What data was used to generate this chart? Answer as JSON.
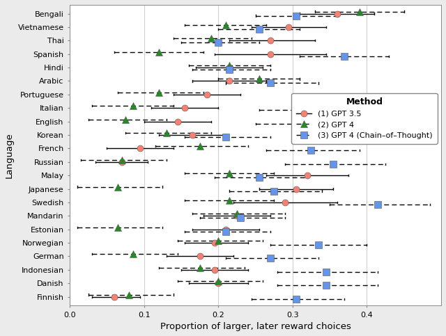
{
  "languages": [
    "Bengali",
    "Vietnamese",
    "Thai",
    "Spanish",
    "Hindi",
    "Arabic",
    "Portuguese",
    "Italian",
    "English",
    "Korean",
    "French",
    "Russian",
    "Malay",
    "Japanese",
    "Swedish",
    "Mandarin",
    "Estonian",
    "Norwegian",
    "German",
    "Indonesian",
    "Danish",
    "Finnish"
  ],
  "gpt35": {
    "means": [
      0.36,
      0.295,
      0.27,
      0.27,
      0.215,
      0.215,
      0.185,
      0.155,
      0.145,
      0.165,
      0.095,
      0.07,
      0.32,
      0.305,
      0.29,
      0.225,
      0.21,
      0.195,
      0.175,
      0.195,
      0.2,
      0.06
    ],
    "lo": [
      0.31,
      0.245,
      0.215,
      0.195,
      0.17,
      0.165,
      0.14,
      0.11,
      0.1,
      0.12,
      0.05,
      0.035,
      0.265,
      0.255,
      0.22,
      0.18,
      0.165,
      0.155,
      0.13,
      0.15,
      0.16,
      0.03
    ],
    "hi": [
      0.41,
      0.345,
      0.33,
      0.345,
      0.26,
      0.265,
      0.23,
      0.2,
      0.19,
      0.21,
      0.14,
      0.105,
      0.375,
      0.355,
      0.36,
      0.27,
      0.255,
      0.24,
      0.22,
      0.24,
      0.24,
      0.095
    ]
  },
  "gpt4": {
    "means": [
      0.39,
      0.21,
      0.19,
      0.12,
      0.215,
      0.255,
      0.12,
      0.085,
      0.075,
      0.13,
      0.175,
      0.07,
      0.215,
      0.065,
      0.215,
      0.225,
      0.065,
      0.2,
      0.085,
      0.175,
      0.2,
      0.08
    ],
    "lo": [
      0.33,
      0.155,
      0.14,
      0.06,
      0.16,
      0.2,
      0.065,
      0.03,
      0.025,
      0.075,
      0.115,
      0.015,
      0.155,
      0.01,
      0.155,
      0.165,
      0.01,
      0.145,
      0.03,
      0.12,
      0.145,
      0.025
    ],
    "hi": [
      0.45,
      0.265,
      0.245,
      0.18,
      0.27,
      0.31,
      0.18,
      0.14,
      0.13,
      0.19,
      0.24,
      0.13,
      0.275,
      0.125,
      0.275,
      0.29,
      0.125,
      0.26,
      0.145,
      0.235,
      0.26,
      0.14
    ]
  },
  "gpt4cot": {
    "means": [
      0.305,
      0.255,
      0.2,
      0.37,
      0.215,
      0.27,
      0.385,
      0.315,
      0.31,
      0.21,
      0.325,
      0.355,
      0.255,
      0.275,
      0.415,
      0.23,
      0.21,
      0.335,
      0.27,
      0.345,
      0.345,
      0.305
    ],
    "lo": [
      0.25,
      0.2,
      0.15,
      0.31,
      0.165,
      0.21,
      0.325,
      0.255,
      0.25,
      0.155,
      0.265,
      0.29,
      0.195,
      0.215,
      0.35,
      0.175,
      0.155,
      0.27,
      0.21,
      0.28,
      0.28,
      0.245
    ],
    "hi": [
      0.36,
      0.31,
      0.255,
      0.43,
      0.27,
      0.335,
      0.445,
      0.38,
      0.375,
      0.27,
      0.39,
      0.425,
      0.32,
      0.34,
      0.485,
      0.29,
      0.27,
      0.4,
      0.335,
      0.415,
      0.415,
      0.37
    ]
  },
  "colors": {
    "gpt35": "#FA8072",
    "gpt4": "#228B22",
    "gpt4cot": "#6495ED"
  },
  "xlim": [
    0.0,
    0.5
  ],
  "xticks": [
    0.0,
    0.1,
    0.2,
    0.3,
    0.4
  ],
  "xlabel": "Proportion of larger, later reward choices",
  "ylabel": "Language",
  "legend_title": "Method",
  "legend_labels": [
    "(1) GPT 3.5",
    "(2) GPT 4",
    "(3) GPT 4 (Chain–of–Thought)"
  ],
  "bg_color": "#ebebeb",
  "panel_color": "#ffffff"
}
